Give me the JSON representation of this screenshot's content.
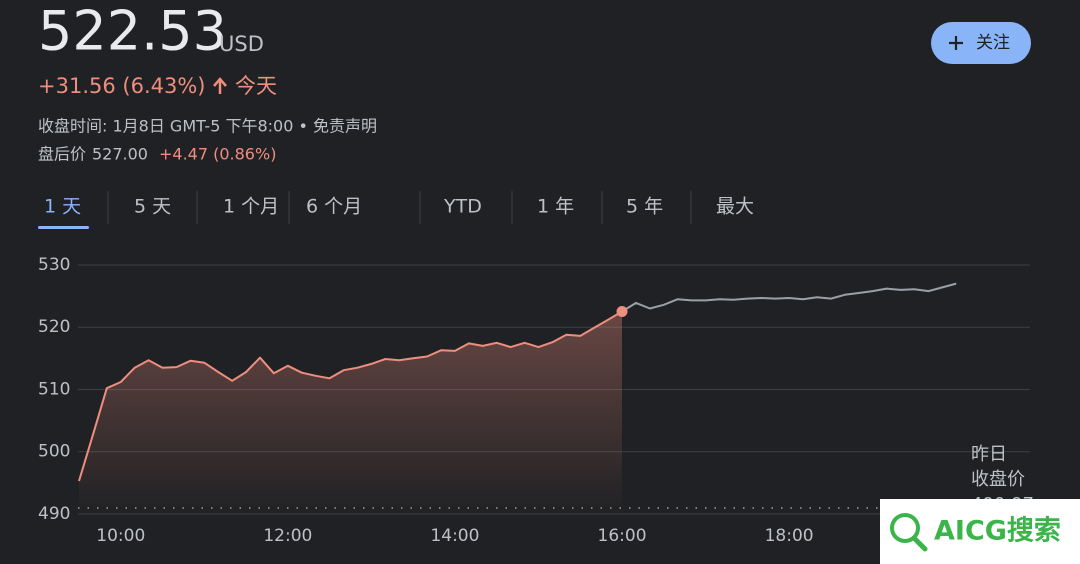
{
  "header": {
    "price": "522.53",
    "currency": "USD",
    "change": "+31.56 (6.43%)",
    "period": "今天",
    "close_time": "收盘时间: 1月8日 GMT-5 下午8:00 • 免责声明",
    "after_hours_label": "盘后价",
    "after_hours_price": "527.00",
    "after_hours_change": "+4.47 (0.86%)",
    "follow_button": "关注"
  },
  "tabs": [
    "1 天",
    "5 天",
    "1 个月",
    "6 个月",
    "YTD",
    "1 年",
    "5 年",
    "最大"
  ],
  "watermark": "AICG搜索",
  "chart_data": {
    "type": "line",
    "series": [
      {
        "name": "regular",
        "color": "#ee8e7e",
        "x": [
          570,
          580,
          590,
          600,
          610,
          620,
          630,
          640,
          650,
          660,
          670,
          680,
          690,
          700,
          710,
          720,
          730,
          740,
          750,
          760,
          770,
          780,
          790,
          800,
          810,
          820,
          830,
          840,
          850,
          860,
          870,
          880,
          890,
          900,
          910,
          920,
          930,
          940,
          950,
          960
        ],
        "values": [
          495.3,
          502.7,
          510.2,
          511.2,
          513.5,
          514.7,
          513.5,
          513.6,
          514.6,
          514.3,
          512.8,
          511.4,
          512.8,
          515.1,
          512.6,
          513.8,
          512.7,
          512.2,
          511.8,
          513.1,
          513.5,
          514.1,
          514.9,
          514.7,
          515.0,
          515.3,
          516.3,
          516.2,
          517.4,
          517.0,
          517.5,
          516.8,
          517.5,
          516.8,
          517.6,
          518.8,
          518.6,
          519.9,
          521.2,
          522.53
        ]
      },
      {
        "name": "after-hours",
        "color": "#9aa0a6",
        "x": [
          960,
          970,
          980,
          990,
          1000,
          1010,
          1020,
          1030,
          1040,
          1050,
          1060,
          1070,
          1080,
          1090,
          1100,
          1110,
          1120,
          1130,
          1140,
          1150,
          1160,
          1170,
          1180,
          1190,
          1200
        ],
        "values": [
          522.53,
          523.9,
          523.0,
          523.6,
          524.5,
          524.3,
          524.3,
          524.5,
          524.4,
          524.6,
          524.7,
          524.6,
          524.7,
          524.5,
          524.8,
          524.6,
          525.2,
          525.5,
          525.8,
          526.2,
          526.0,
          526.1,
          525.8,
          526.4,
          527.0
        ]
      }
    ],
    "xlim": [
      570,
      1253
    ],
    "xticks": [
      {
        "value": 600,
        "label": "10:00"
      },
      {
        "value": 720,
        "label": "12:00"
      },
      {
        "value": 840,
        "label": "14:00"
      },
      {
        "value": 960,
        "label": "16:00"
      },
      {
        "value": 1080,
        "label": "18:00"
      }
    ],
    "ylim": [
      490,
      532
    ],
    "yticks": [
      490,
      500,
      510,
      520,
      530
    ],
    "grid": true,
    "previous_close": 490.97,
    "previous_close_label": [
      "昨日",
      "收盘价"
    ]
  }
}
